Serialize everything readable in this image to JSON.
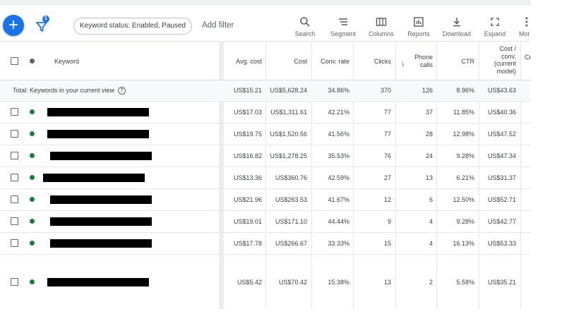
{
  "toolbar": {
    "filter_count": "1",
    "chip_label": "Keyword status: Enabled, Paused",
    "add_filter": "Add filter",
    "tools": [
      {
        "label": "Search",
        "icon": "search-icon"
      },
      {
        "label": "Segment",
        "icon": "segment-icon"
      },
      {
        "label": "Columns",
        "icon": "columns-icon"
      },
      {
        "label": "Reports",
        "icon": "reports-icon"
      },
      {
        "label": "Download",
        "icon": "download-icon"
      },
      {
        "label": "Expand",
        "icon": "expand-icon"
      },
      {
        "label": "Mor",
        "icon": "more-icon"
      }
    ]
  },
  "colors": {
    "accent": "#1a73e8",
    "status_enabled": "#188038"
  },
  "columns": {
    "keyword": "Keyword",
    "avg_cost": "Avg. cost",
    "cost": "Cost",
    "conv_rate": "Conv. rate",
    "clicks": "Clicks",
    "phone_calls_1": "Phone",
    "phone_calls_2": "calls",
    "ctr": "CTR",
    "cost_conv_1": "Cost /",
    "cost_conv_2": "conv.",
    "cost_conv_3": "(current",
    "cost_conv_4": "model)",
    "cut": "Co"
  },
  "total": {
    "label": "Total: Keywords in your current view",
    "avg_cost": "US$15.21",
    "cost": "US$5,628.24",
    "conv_rate": "34.86%",
    "clicks": "370",
    "phone_calls": "126",
    "ctr": "8.96%",
    "cost_conv": "US$43.63"
  },
  "rows": [
    {
      "avg_cost": "US$17.03",
      "cost": "US$1,311.61",
      "conv_rate": "42.21%",
      "clicks": "77",
      "phone_calls": "37",
      "ctr": "11.85%",
      "cost_conv": "US$40.36"
    },
    {
      "avg_cost": "US$19.75",
      "cost": "US$1,520.56",
      "conv_rate": "41.56%",
      "clicks": "77",
      "phone_calls": "28",
      "ctr": "12.98%",
      "cost_conv": "US$47.52"
    },
    {
      "avg_cost": "US$16.82",
      "cost": "US$1,278.25",
      "conv_rate": "35.53%",
      "clicks": "76",
      "phone_calls": "24",
      "ctr": "9.28%",
      "cost_conv": "US$47.34"
    },
    {
      "avg_cost": "US$13.36",
      "cost": "US$360.76",
      "conv_rate": "42.59%",
      "clicks": "27",
      "phone_calls": "13",
      "ctr": "6.21%",
      "cost_conv": "US$31.37"
    },
    {
      "avg_cost": "US$21.96",
      "cost": "US$263.53",
      "conv_rate": "41.67%",
      "clicks": "12",
      "phone_calls": "6",
      "ctr": "12.50%",
      "cost_conv": "US$52.71"
    },
    {
      "avg_cost": "US$19.01",
      "cost": "US$171.10",
      "conv_rate": "44.44%",
      "clicks": "9",
      "phone_calls": "4",
      "ctr": "9.28%",
      "cost_conv": "US$42.77"
    },
    {
      "avg_cost": "US$17.78",
      "cost": "US$266.67",
      "conv_rate": "33.33%",
      "clicks": "15",
      "phone_calls": "4",
      "ctr": "16.13%",
      "cost_conv": "US$53.33"
    },
    {
      "avg_cost": "US$5.42",
      "cost": "US$70.42",
      "conv_rate": "15.38%",
      "clicks": "13",
      "phone_calls": "2",
      "ctr": "5.58%",
      "cost_conv": "US$35.21"
    }
  ]
}
